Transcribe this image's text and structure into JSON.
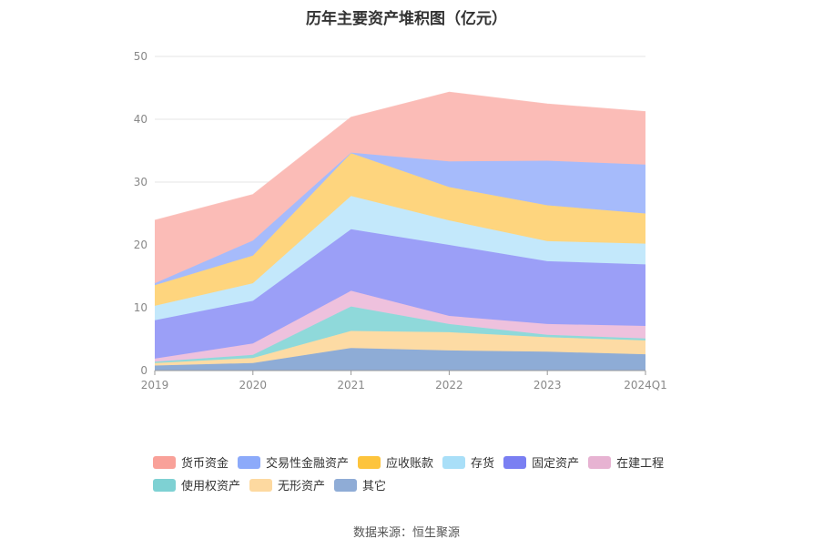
{
  "chart_data": {
    "type": "area",
    "stacked": true,
    "title": "历年主要资产堆积图（亿元）",
    "categories": [
      "2019",
      "2020",
      "2021",
      "2022",
      "2023",
      "2024Q1"
    ],
    "ylim": [
      0,
      50
    ],
    "yticks": [
      0,
      10,
      20,
      30,
      40,
      50
    ],
    "grid": true,
    "legend_position": "bottom",
    "series": [
      {
        "name": "其它",
        "color": "#8eacd6",
        "values": [
          0.8,
          1.2,
          3.6,
          3.2,
          3.0,
          2.6
        ]
      },
      {
        "name": "无形资产",
        "color": "#fddba4",
        "values": [
          0.4,
          0.8,
          2.7,
          2.9,
          2.3,
          2.2
        ]
      },
      {
        "name": "使用权资产",
        "color": "#8fd9da",
        "values": [
          0.2,
          0.5,
          3.9,
          1.3,
          0.4,
          0.3
        ]
      },
      {
        "name": "在建工程",
        "color": "#eec1dd",
        "values": [
          0.5,
          1.8,
          2.5,
          1.3,
          1.7,
          2.0
        ]
      },
      {
        "name": "固定资产",
        "color": "#9b9ff7",
        "values": [
          6.1,
          6.8,
          9.8,
          11.3,
          10.0,
          9.8
        ]
      },
      {
        "name": "存货",
        "color": "#c3e8fb",
        "values": [
          2.3,
          2.8,
          5.3,
          3.9,
          3.2,
          3.3
        ]
      },
      {
        "name": "应收账款",
        "color": "#fed57e",
        "values": [
          3.3,
          4.4,
          6.8,
          5.3,
          5.7,
          4.8
        ]
      },
      {
        "name": "交易性金融资产",
        "color": "#a6bbfb",
        "values": [
          0.3,
          2.4,
          0.1,
          4.1,
          7.1,
          7.8
        ]
      },
      {
        "name": "货币资金",
        "color": "#fbbcb7",
        "values": [
          10.0,
          7.3,
          5.6,
          11.0,
          9.0,
          8.4
        ]
      }
    ]
  },
  "legend": {
    "items": [
      {
        "label": "货币资金",
        "color": "#f9a199"
      },
      {
        "label": "交易性金融资产",
        "color": "#8caafa"
      },
      {
        "label": "应收账款",
        "color": "#fdc43d"
      },
      {
        "label": "存货",
        "color": "#a9dff8"
      },
      {
        "label": "固定资产",
        "color": "#7a7ff2"
      },
      {
        "label": "在建工程",
        "color": "#e7b3d2"
      },
      {
        "label": "使用权资产",
        "color": "#7ed1d3"
      },
      {
        "label": "无形资产",
        "color": "#fdd9a0"
      },
      {
        "label": "其它",
        "color": "#8facd6"
      }
    ]
  },
  "source": "数据来源：恒生聚源"
}
